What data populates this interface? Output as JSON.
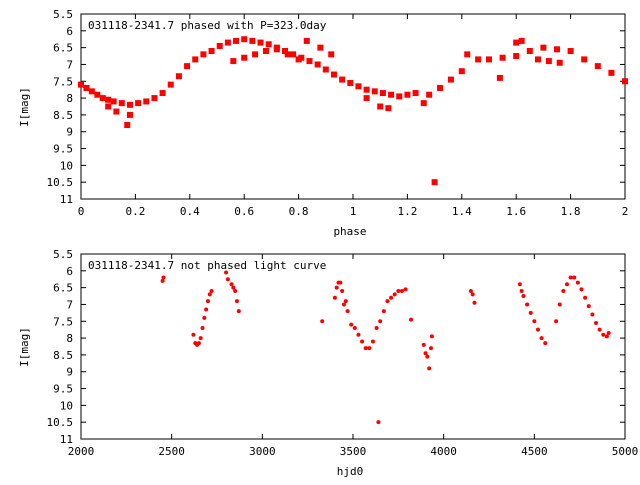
{
  "chart_data": [
    {
      "type": "scatter",
      "title": "031118-2341.7 phased with P=323.0day",
      "xlabel": "phase",
      "ylabel": "I[mag]",
      "xlim": [
        0,
        2
      ],
      "ylim": [
        5.5,
        11
      ],
      "y_inverted": true,
      "x_ticks": [
        "0",
        "0.2",
        "0.4",
        "0.6",
        "0.8",
        "1",
        "1.2",
        "1.4",
        "1.6",
        "1.8",
        "2"
      ],
      "y_ticks": [
        "5.5",
        "6",
        "6.5",
        "7",
        "7.5",
        "8",
        "8.5",
        "9",
        "9.5",
        "10",
        "10.5",
        "11"
      ],
      "marker_color": "#ff0000",
      "marker": "square",
      "x": [
        0.0,
        0.02,
        0.04,
        0.06,
        0.08,
        0.1,
        0.12,
        0.15,
        0.18,
        0.21,
        0.24,
        0.27,
        0.3,
        0.33,
        0.36,
        0.39,
        0.42,
        0.45,
        0.48,
        0.51,
        0.54,
        0.57,
        0.6,
        0.63,
        0.66,
        0.69,
        0.72,
        0.75,
        0.78,
        0.81,
        0.84,
        0.87,
        0.9,
        0.93,
        0.96,
        0.99,
        1.02,
        1.05,
        1.08,
        1.11,
        1.14,
        1.17,
        1.2,
        1.23,
        1.46,
        1.5,
        1.55,
        1.6,
        1.65,
        1.7,
        1.75,
        1.8,
        1.85,
        1.9,
        1.95,
        2.0,
        1.05,
        1.1,
        1.13,
        0.56,
        0.6,
        0.64,
        0.68,
        0.72,
        0.76,
        0.8,
        0.1,
        0.13,
        0.17,
        0.18,
        1.3,
        1.26,
        1.28,
        1.32,
        1.36,
        1.4,
        1.42,
        1.54,
        1.6,
        1.62,
        1.68,
        1.72,
        1.76,
        0.83,
        0.88,
        0.92
      ],
      "y": [
        7.6,
        7.7,
        7.8,
        7.9,
        8.0,
        8.05,
        8.1,
        8.15,
        8.2,
        8.15,
        8.1,
        8.0,
        7.85,
        7.6,
        7.35,
        7.05,
        6.85,
        6.7,
        6.6,
        6.45,
        6.35,
        6.3,
        6.25,
        6.3,
        6.35,
        6.4,
        6.5,
        6.6,
        6.7,
        6.8,
        6.9,
        7.0,
        7.15,
        7.3,
        7.45,
        7.55,
        7.65,
        7.75,
        7.8,
        7.85,
        7.9,
        7.95,
        7.9,
        7.85,
        6.85,
        6.85,
        6.8,
        6.75,
        6.6,
        6.5,
        6.55,
        6.6,
        6.85,
        7.05,
        7.25,
        7.5,
        8.0,
        8.25,
        8.3,
        6.9,
        6.8,
        6.7,
        6.6,
        6.55,
        6.7,
        6.85,
        8.25,
        8.4,
        8.8,
        8.5,
        10.5,
        8.15,
        7.9,
        7.7,
        7.45,
        7.2,
        6.7,
        7.4,
        6.35,
        6.3,
        6.85,
        6.9,
        6.95,
        6.3,
        6.5,
        6.7
      ]
    },
    {
      "type": "scatter",
      "title": "031118-2341.7 not phased light curve",
      "xlabel": "hjd0",
      "ylabel": "I[mag]",
      "xlim": [
        2000,
        5000
      ],
      "ylim": [
        5.5,
        11
      ],
      "y_inverted": true,
      "x_ticks": [
        "2000",
        "2500",
        "3000",
        "3500",
        "4000",
        "4500",
        "5000"
      ],
      "y_ticks": [
        "5.5",
        "6",
        "6.5",
        "7",
        "7.5",
        "8",
        "8.5",
        "9",
        "9.5",
        "10",
        "10.5",
        "11"
      ],
      "marker_color": "#ff0000",
      "marker": "dot",
      "x": [
        2450,
        2455,
        2620,
        2630,
        2640,
        2650,
        2660,
        2670,
        2680,
        2690,
        2700,
        2710,
        2720,
        2800,
        2810,
        2830,
        2840,
        2850,
        2860,
        2870,
        3330,
        3400,
        3410,
        3420,
        3430,
        3440,
        3450,
        3460,
        3470,
        3490,
        3510,
        3530,
        3550,
        3570,
        3590,
        3610,
        3630,
        3650,
        3670,
        3690,
        3710,
        3730,
        3750,
        3770,
        3790,
        3820,
        3890,
        3900,
        3910,
        3920,
        3930,
        3935,
        3640,
        4150,
        4160,
        4170,
        4420,
        4430,
        4440,
        4460,
        4480,
        4500,
        4520,
        4540,
        4560,
        4620,
        4640,
        4660,
        4680,
        4700,
        4720,
        4740,
        4760,
        4780,
        4800,
        4820,
        4840,
        4860,
        4880,
        4900,
        4910
      ],
      "y": [
        6.3,
        6.2,
        7.9,
        8.15,
        8.2,
        8.15,
        8.0,
        7.7,
        7.4,
        7.15,
        6.9,
        6.7,
        6.6,
        6.05,
        6.25,
        6.4,
        6.5,
        6.6,
        6.9,
        7.2,
        7.5,
        6.8,
        6.5,
        6.35,
        6.35,
        6.6,
        7.0,
        6.9,
        7.2,
        7.6,
        7.7,
        7.9,
        8.1,
        8.3,
        8.3,
        8.1,
        7.7,
        7.5,
        7.2,
        6.9,
        6.8,
        6.7,
        6.6,
        6.6,
        6.55,
        7.45,
        8.2,
        8.45,
        8.55,
        8.9,
        8.3,
        7.95,
        10.5,
        6.6,
        6.7,
        6.95,
        6.4,
        6.6,
        6.75,
        7.0,
        7.25,
        7.5,
        7.75,
        8.0,
        8.15,
        7.5,
        7.0,
        6.6,
        6.4,
        6.2,
        6.2,
        6.35,
        6.55,
        6.8,
        7.05,
        7.3,
        7.55,
        7.75,
        7.9,
        7.95,
        7.85
      ]
    }
  ]
}
